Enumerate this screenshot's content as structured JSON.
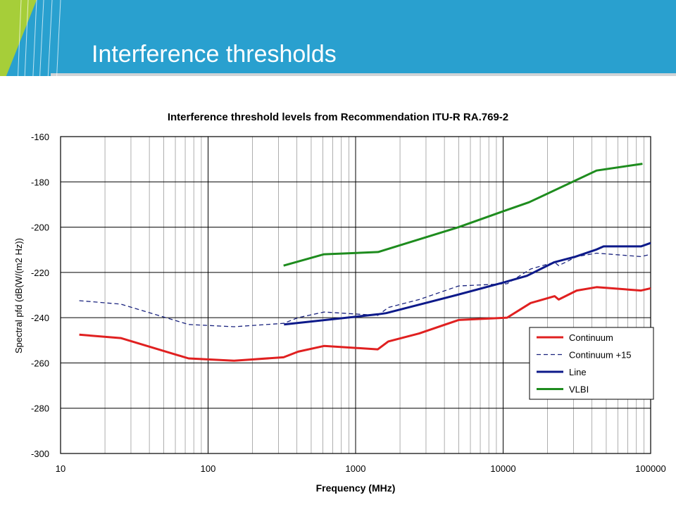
{
  "slide": {
    "title": "Interference thresholds",
    "banner_color": "#29a0cf",
    "accent_color": "#a6ce39"
  },
  "chart_data": {
    "type": "line",
    "title": "Interference threshold levels from Recommendation ITU-R RA.769-2",
    "xlabel": "Frequency (MHz)",
    "ylabel": "Spectral pfd (dB(W/(m2 Hz))",
    "xscale": "log",
    "xlim": [
      10,
      100000
    ],
    "ylim": [
      -300,
      -160
    ],
    "x_ticks": [
      10,
      100,
      1000,
      10000,
      100000
    ],
    "x_tick_labels": [
      "10",
      "100",
      "1000",
      "10000",
      "100000"
    ],
    "y_ticks": [
      -160,
      -180,
      -200,
      -220,
      -240,
      -260,
      -280,
      -300
    ],
    "y_tick_labels": [
      "-160",
      "-180",
      "-200",
      "-220",
      "-240",
      "-260",
      "-280",
      "-300"
    ],
    "grid": true,
    "legend_position": "bottom-right",
    "series": [
      {
        "name": "Continuum",
        "color": "#e02020",
        "dash": "solid",
        "points": [
          [
            13.4,
            -247.5
          ],
          [
            25.6,
            -249
          ],
          [
            73.8,
            -258
          ],
          [
            150,
            -259
          ],
          [
            325,
            -257.5
          ],
          [
            408,
            -255
          ],
          [
            611,
            -252.5
          ],
          [
            1413,
            -254
          ],
          [
            1665,
            -250.5
          ],
          [
            2695,
            -247
          ],
          [
            4995,
            -241
          ],
          [
            10650,
            -240
          ],
          [
            15375,
            -233.5
          ],
          [
            22355,
            -230.5
          ],
          [
            23800,
            -232
          ],
          [
            31550,
            -228
          ],
          [
            43000,
            -226.5
          ],
          [
            86000,
            -228
          ],
          [
            100000,
            -227
          ]
        ]
      },
      {
        "name": "Continuum +15",
        "color": "#1a237e",
        "dash": "dashed",
        "points": [
          [
            13.4,
            -232.5
          ],
          [
            25.6,
            -234
          ],
          [
            73.8,
            -243
          ],
          [
            150,
            -244
          ],
          [
            325,
            -242.5
          ],
          [
            408,
            -240
          ],
          [
            611,
            -237.5
          ],
          [
            1413,
            -239
          ],
          [
            1665,
            -235.5
          ],
          [
            2695,
            -232
          ],
          [
            4995,
            -226
          ],
          [
            10650,
            -225
          ],
          [
            15375,
            -218.5
          ],
          [
            22355,
            -215.5
          ],
          [
            23800,
            -217
          ],
          [
            31550,
            -213
          ],
          [
            43000,
            -211.5
          ],
          [
            86000,
            -213
          ],
          [
            100000,
            -212
          ]
        ]
      },
      {
        "name": "Line",
        "color": "#0d1a8a",
        "dash": "solid",
        "points": [
          [
            327,
            -243
          ],
          [
            1420,
            -238.5
          ],
          [
            1612,
            -238
          ],
          [
            4830,
            -230
          ],
          [
            10000,
            -224.5
          ],
          [
            14500,
            -221.5
          ],
          [
            22200,
            -215.5
          ],
          [
            31000,
            -213
          ],
          [
            42500,
            -210
          ],
          [
            48000,
            -208.5
          ],
          [
            86000,
            -208.5
          ],
          [
            100000,
            -207
          ]
        ]
      },
      {
        "name": "VLBI",
        "color": "#1e8c1e",
        "dash": "solid",
        "points": [
          [
            325,
            -217
          ],
          [
            611,
            -212
          ],
          [
            1420,
            -211
          ],
          [
            4990,
            -200
          ],
          [
            10000,
            -193
          ],
          [
            15000,
            -189
          ],
          [
            43000,
            -175
          ],
          [
            88000,
            -172
          ]
        ]
      }
    ]
  }
}
